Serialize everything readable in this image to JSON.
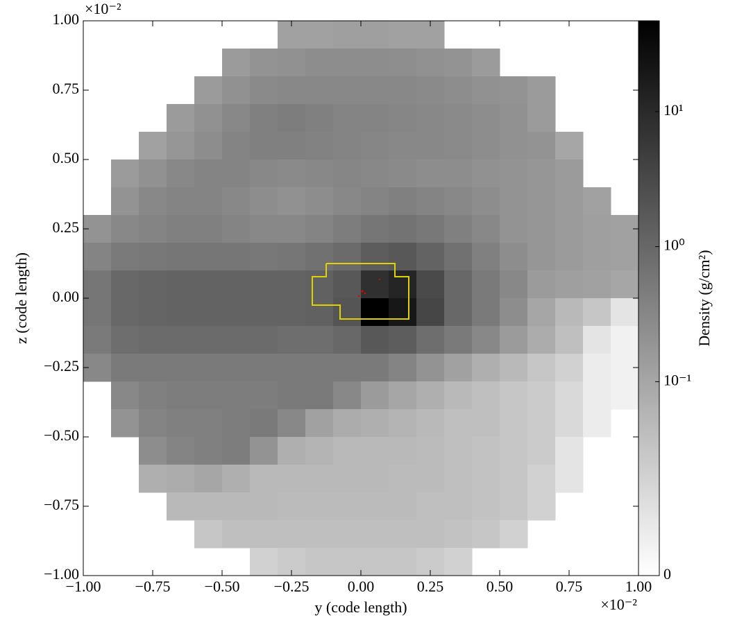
{
  "chart_data": {
    "type": "heatmap",
    "xlabel": "y  (code length)",
    "ylabel": "z  (code length)",
    "x_offset_text": "×10⁻²",
    "y_offset_text": "×10⁻²",
    "colorbar_label": "Density  (g/cm²)",
    "color_scale": "symlog",
    "linthresh": 0.01,
    "colormap": "gray_r",
    "xlim": [
      -1,
      1
    ],
    "ylim": [
      -1,
      1
    ],
    "zlim": [
      0,
      47
    ],
    "xticks": [
      {
        "value": -1,
        "label": "−1.00"
      },
      {
        "value": -0.75,
        "label": "−0.75"
      },
      {
        "value": -0.5,
        "label": "−0.50"
      },
      {
        "value": -0.25,
        "label": "−0.25"
      },
      {
        "value": 0,
        "label": "0.00"
      },
      {
        "value": 0.25,
        "label": "0.25"
      },
      {
        "value": 0.5,
        "label": "0.50"
      },
      {
        "value": 0.75,
        "label": "0.75"
      },
      {
        "value": 1,
        "label": "1.00"
      }
    ],
    "yticks": [
      {
        "value": -1,
        "label": "−1.00"
      },
      {
        "value": -0.75,
        "label": "−0.75"
      },
      {
        "value": -0.5,
        "label": "−0.50"
      },
      {
        "value": -0.25,
        "label": "−0.25"
      },
      {
        "value": 0,
        "label": "0.00"
      },
      {
        "value": 0.25,
        "label": "0.25"
      },
      {
        "value": 0.5,
        "label": "0.50"
      },
      {
        "value": 0.75,
        "label": "0.75"
      },
      {
        "value": 1,
        "label": "1.00"
      }
    ],
    "zticks": [
      0,
      {
        "value": 0.1,
        "label": "10⁻¹"
      },
      {
        "value": 1,
        "label": "10⁰"
      },
      {
        "value": 10,
        "label": "10¹"
      }
    ],
    "values": [
      [
        null,
        null,
        null,
        null,
        null,
        null,
        null,
        0.12,
        0.12,
        0.13,
        0.13,
        0.12,
        0.12,
        null,
        null,
        null,
        null,
        null,
        null,
        null
      ],
      [
        null,
        null,
        null,
        null,
        null,
        0.15,
        0.2,
        0.22,
        0.25,
        0.25,
        0.25,
        0.24,
        0.22,
        0.2,
        0.15,
        null,
        null,
        null,
        null,
        null
      ],
      [
        null,
        null,
        null,
        null,
        0.15,
        0.22,
        0.28,
        0.3,
        0.3,
        0.3,
        0.3,
        0.3,
        0.28,
        0.25,
        0.22,
        0.2,
        0.15,
        null,
        null,
        null
      ],
      [
        null,
        null,
        null,
        0.15,
        0.22,
        0.3,
        0.4,
        0.45,
        0.4,
        0.35,
        0.35,
        0.33,
        0.3,
        0.28,
        0.25,
        0.22,
        0.15,
        null,
        null,
        null
      ],
      [
        null,
        null,
        0.12,
        0.18,
        0.25,
        0.35,
        0.4,
        0.4,
        0.38,
        0.35,
        0.33,
        0.3,
        0.3,
        0.28,
        0.25,
        0.22,
        0.2,
        0.1,
        null,
        null
      ],
      [
        null,
        0.15,
        0.22,
        0.3,
        0.35,
        0.35,
        0.3,
        0.28,
        0.3,
        0.33,
        0.3,
        0.28,
        0.25,
        0.25,
        0.22,
        0.2,
        0.18,
        0.15,
        null,
        null
      ],
      [
        null,
        0.2,
        0.3,
        0.35,
        0.35,
        0.3,
        0.25,
        0.22,
        0.25,
        0.3,
        0.35,
        0.4,
        0.35,
        0.3,
        0.25,
        0.2,
        0.18,
        0.15,
        0.12,
        null
      ],
      [
        0.2,
        0.3,
        0.35,
        0.4,
        0.4,
        0.35,
        0.3,
        0.3,
        0.35,
        0.45,
        0.6,
        0.65,
        0.55,
        0.4,
        0.3,
        0.2,
        0.18,
        0.15,
        0.13,
        0.12
      ],
      [
        0.35,
        0.5,
        0.55,
        0.6,
        0.6,
        0.6,
        0.55,
        0.6,
        0.7,
        0.9,
        1.5,
        1.8,
        1.2,
        0.7,
        0.4,
        0.25,
        0.18,
        0.15,
        0.13,
        0.12
      ],
      [
        0.6,
        1.0,
        1.1,
        1.2,
        1.2,
        1.2,
        1.2,
        1.2,
        1.3,
        1.8,
        8,
        12,
        3,
        1.0,
        0.5,
        0.3,
        0.15,
        0.13,
        0.12,
        0.1
      ],
      [
        0.6,
        1.0,
        1.1,
        1.2,
        1.2,
        1.2,
        1.2,
        1.2,
        1.3,
        2.0,
        47,
        20,
        3.5,
        1.0,
        0.5,
        0.25,
        0.1,
        0.05,
        0.03,
        0.01
      ],
      [
        0.5,
        0.8,
        0.9,
        0.9,
        0.9,
        0.9,
        0.9,
        0.8,
        0.8,
        1.0,
        1.8,
        1.5,
        0.8,
        0.5,
        0.3,
        0.15,
        0.08,
        0.04,
        0.01,
        0.005
      ],
      [
        0.3,
        0.5,
        0.5,
        0.5,
        0.5,
        0.5,
        0.5,
        0.5,
        0.5,
        0.5,
        0.5,
        0.35,
        0.2,
        0.12,
        0.07,
        0.05,
        0.03,
        0.02,
        0.007,
        0.005
      ],
      [
        null,
        0.3,
        0.4,
        0.45,
        0.45,
        0.45,
        0.45,
        0.5,
        0.5,
        0.3,
        0.15,
        0.1,
        0.07,
        0.05,
        0.04,
        0.03,
        0.025,
        0.015,
        0.007,
        0.005
      ],
      [
        null,
        0.2,
        0.35,
        0.4,
        0.4,
        0.45,
        0.5,
        0.3,
        0.12,
        0.08,
        0.07,
        0.06,
        0.05,
        0.04,
        0.04,
        0.03,
        0.025,
        0.015,
        0.007,
        null
      ],
      [
        null,
        null,
        0.25,
        0.35,
        0.4,
        0.45,
        0.2,
        0.07,
        0.06,
        0.05,
        0.05,
        0.05,
        0.045,
        0.04,
        0.035,
        0.03,
        0.025,
        0.01,
        null,
        null
      ],
      [
        null,
        null,
        0.07,
        0.08,
        0.1,
        0.07,
        0.05,
        0.05,
        0.05,
        0.05,
        0.05,
        0.045,
        0.045,
        0.04,
        0.035,
        0.03,
        0.02,
        0.01,
        null,
        null
      ],
      [
        null,
        null,
        null,
        0.05,
        0.05,
        0.05,
        0.05,
        0.045,
        0.045,
        0.045,
        0.045,
        0.045,
        0.04,
        0.04,
        0.035,
        0.03,
        0.02,
        null,
        null,
        null
      ],
      [
        null,
        null,
        null,
        null,
        0.03,
        0.04,
        0.04,
        0.04,
        0.04,
        0.04,
        0.04,
        0.04,
        0.04,
        0.035,
        0.03,
        0.02,
        null,
        null,
        null,
        null
      ],
      [
        null,
        null,
        null,
        null,
        null,
        null,
        0.02,
        0.025,
        0.03,
        0.03,
        0.03,
        0.03,
        0.025,
        0.02,
        null,
        null,
        null,
        null,
        null,
        null
      ]
    ]
  }
}
